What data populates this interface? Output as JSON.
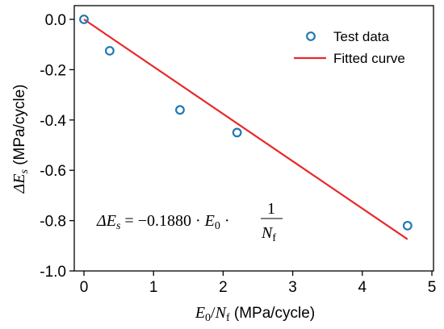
{
  "chart_data": {
    "type": "scatter",
    "xlabel": "E0/Nf (MPa/cycle)",
    "ylabel": "ΔEs (MPa/cycle)",
    "xlim": [
      0,
      5
    ],
    "ylim": [
      -1.0,
      0.0
    ],
    "x_ticks": [
      "0",
      "1",
      "2",
      "3",
      "4",
      "5"
    ],
    "y_ticks": [
      "0.0",
      "-0.2",
      "-0.4",
      "-0.6",
      "-0.8",
      "-1.0"
    ],
    "grid": false,
    "legend_position": "top-right",
    "series": [
      {
        "name": "Test data",
        "kind": "scatter",
        "color": "#1f77b4",
        "x": [
          0.0,
          0.37,
          1.38,
          2.2,
          4.65
        ],
        "y": [
          0.0,
          -0.125,
          -0.36,
          -0.45,
          -0.82
        ]
      },
      {
        "name": "Fitted curve",
        "kind": "line",
        "color": "#e8292b",
        "x": [
          0.0,
          4.65
        ],
        "y": [
          0.0,
          -0.874
        ]
      }
    ],
    "annotation": {
      "equation_text": "ΔEs = −0.1880 · E0 · 1/Nf"
    }
  }
}
